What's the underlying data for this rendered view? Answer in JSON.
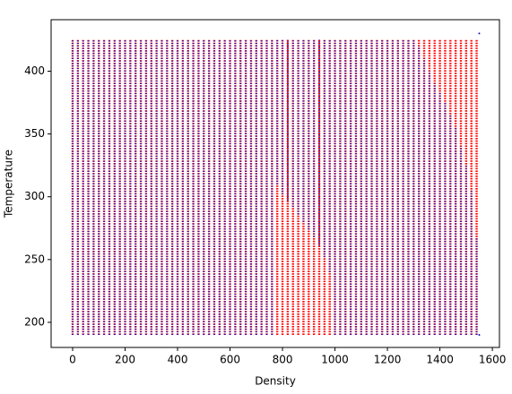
{
  "chart_data": {
    "type": "scatter",
    "x_label": "Density",
    "y_label": "Temperature",
    "xlim": [
      -82,
      1627
    ],
    "ylim": [
      180,
      441
    ],
    "xticks": [
      0,
      200,
      400,
      600,
      800,
      1000,
      1200,
      1400,
      1600
    ],
    "yticks": [
      200,
      250,
      300,
      350,
      400
    ],
    "series": [
      {
        "color": "#ff0000",
        "x": [
          0,
          20,
          40,
          60,
          80,
          100,
          120,
          140,
          160,
          180,
          200,
          220,
          240,
          260,
          280,
          300,
          320,
          340,
          360,
          380,
          400,
          420,
          440,
          460,
          480,
          500,
          520,
          540,
          560,
          580,
          600,
          620,
          640,
          660,
          680,
          700,
          720,
          740,
          760,
          780,
          800,
          820,
          840,
          860,
          880,
          900,
          920,
          940,
          960,
          980,
          1000,
          1020,
          1040,
          1060,
          1080,
          1100,
          1120,
          1140,
          1160,
          1180,
          1200,
          1220,
          1240,
          1260,
          1280,
          1300,
          1320,
          1340,
          1360,
          1380,
          1400,
          1420,
          1440,
          1460,
          1480,
          1500,
          1520,
          1540
        ],
        "low": [
          190,
          190,
          190,
          190,
          190,
          190,
          190,
          190,
          190,
          190,
          190,
          190,
          190,
          190,
          190,
          190,
          190,
          190,
          190,
          190,
          190,
          190,
          190,
          190,
          190,
          190,
          190,
          190,
          190,
          190,
          190,
          190,
          190,
          190,
          190,
          190,
          190,
          190,
          190,
          190,
          190,
          190,
          190,
          190,
          190,
          190,
          190,
          190,
          190,
          190,
          190,
          190,
          190,
          190,
          190,
          190,
          190,
          190,
          190,
          190,
          190,
          190,
          190,
          190,
          190,
          190,
          190,
          190,
          190,
          190,
          190,
          190,
          190,
          190,
          190,
          190,
          190,
          190
        ],
        "high": [
          425,
          425,
          425,
          425,
          425,
          425,
          425,
          425,
          425,
          425,
          425,
          425,
          425,
          425,
          425,
          425,
          425,
          425,
          425,
          425,
          425,
          425,
          425,
          425,
          425,
          425,
          425,
          425,
          425,
          425,
          425,
          425,
          425,
          425,
          425,
          425,
          425,
          425,
          425,
          425,
          425,
          425,
          425,
          425,
          425,
          425,
          425,
          425,
          425,
          425,
          425,
          425,
          425,
          425,
          425,
          425,
          425,
          425,
          425,
          425,
          425,
          425,
          425,
          425,
          425,
          425,
          425,
          425,
          425,
          425,
          425,
          425,
          425,
          425,
          425,
          425,
          425,
          425
        ]
      },
      {
        "color": "#1010c8",
        "x": [
          0,
          20,
          40,
          60,
          80,
          100,
          120,
          140,
          160,
          180,
          200,
          220,
          240,
          260,
          280,
          300,
          320,
          340,
          360,
          380,
          400,
          420,
          440,
          460,
          480,
          500,
          520,
          540,
          560,
          580,
          600,
          620,
          640,
          660,
          680,
          700,
          720,
          740,
          760,
          780,
          800,
          820,
          840,
          860,
          880,
          900,
          920,
          940,
          960,
          980,
          1000,
          1020,
          1040,
          1060,
          1080,
          1100,
          1120,
          1140,
          1160,
          1180,
          1200,
          1220,
          1240,
          1260,
          1280,
          1300,
          1320,
          1340,
          1360,
          1380,
          1400,
          1420,
          1440,
          1460,
          1480,
          1500,
          1520,
          1540,
          1550,
          1550
        ],
        "low": [
          190,
          190,
          190,
          190,
          190,
          190,
          190,
          190,
          190,
          190,
          190,
          190,
          190,
          190,
          190,
          190,
          190,
          190,
          190,
          190,
          190,
          190,
          190,
          190,
          190,
          190,
          190,
          190,
          190,
          190,
          190,
          190,
          190,
          190,
          190,
          190,
          190,
          190,
          190,
          310,
          302,
          297,
          292,
          286,
          280,
          274,
          268,
          261,
          252,
          240,
          190,
          190,
          190,
          190,
          190,
          190,
          190,
          190,
          190,
          190,
          190,
          190,
          190,
          190,
          190,
          190,
          190,
          190,
          190,
          190,
          190,
          190,
          190,
          190,
          190,
          190,
          190,
          190,
          190,
          430
        ],
        "high": [
          425,
          425,
          425,
          425,
          425,
          425,
          425,
          425,
          425,
          425,
          425,
          425,
          425,
          425,
          425,
          425,
          425,
          425,
          425,
          425,
          425,
          425,
          425,
          425,
          425,
          425,
          425,
          425,
          425,
          425,
          425,
          425,
          425,
          425,
          425,
          425,
          425,
          425,
          425,
          425,
          425,
          425,
          425,
          425,
          425,
          425,
          425,
          425,
          425,
          425,
          425,
          425,
          425,
          425,
          425,
          425,
          425,
          425,
          425,
          425,
          425,
          425,
          425,
          425,
          425,
          425,
          420,
          410,
          400,
          390,
          383,
          375,
          365,
          355,
          340,
          325,
          305,
          268,
          190,
          430
        ]
      }
    ]
  }
}
